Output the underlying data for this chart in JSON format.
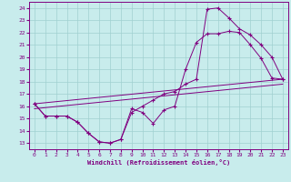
{
  "xlabel": "Windchill (Refroidissement éolien,°C)",
  "bg_color": "#c8ecec",
  "grid_color": "#a0d0d0",
  "line_color": "#800080",
  "xlim": [
    -0.5,
    23.5
  ],
  "ylim": [
    12.5,
    24.5
  ],
  "xticks": [
    0,
    1,
    2,
    3,
    4,
    5,
    6,
    7,
    8,
    9,
    10,
    11,
    12,
    13,
    14,
    15,
    16,
    17,
    18,
    19,
    20,
    21,
    22,
    23
  ],
  "yticks": [
    13,
    14,
    15,
    16,
    17,
    18,
    19,
    20,
    21,
    22,
    23,
    24
  ],
  "line1_x": [
    0,
    1,
    2,
    3,
    4,
    5,
    6,
    7,
    8,
    9,
    10,
    11,
    12,
    13,
    14,
    15,
    16,
    17,
    18,
    19,
    20,
    21,
    22,
    23
  ],
  "line1_y": [
    16.2,
    15.2,
    15.2,
    15.2,
    14.7,
    13.8,
    13.1,
    13.0,
    13.3,
    15.8,
    15.5,
    14.6,
    15.7,
    16.0,
    19.0,
    21.2,
    21.9,
    21.9,
    22.1,
    22.0,
    21.0,
    19.9,
    18.3,
    18.2
  ],
  "line2_x": [
    0,
    1,
    2,
    3,
    4,
    5,
    6,
    7,
    8,
    9,
    10,
    11,
    12,
    13,
    14,
    15,
    16,
    17,
    18,
    19,
    20,
    21,
    22,
    23
  ],
  "line2_y": [
    16.2,
    15.2,
    15.2,
    15.2,
    14.7,
    13.8,
    13.1,
    13.0,
    13.3,
    15.5,
    16.0,
    16.5,
    17.0,
    17.2,
    17.8,
    18.2,
    23.9,
    24.0,
    23.2,
    22.3,
    21.8,
    21.0,
    20.0,
    18.2
  ],
  "trend1_x": [
    0,
    23
  ],
  "trend1_y": [
    16.2,
    18.2
  ],
  "trend2_x": [
    0,
    23
  ],
  "trend2_y": [
    15.8,
    17.8
  ]
}
